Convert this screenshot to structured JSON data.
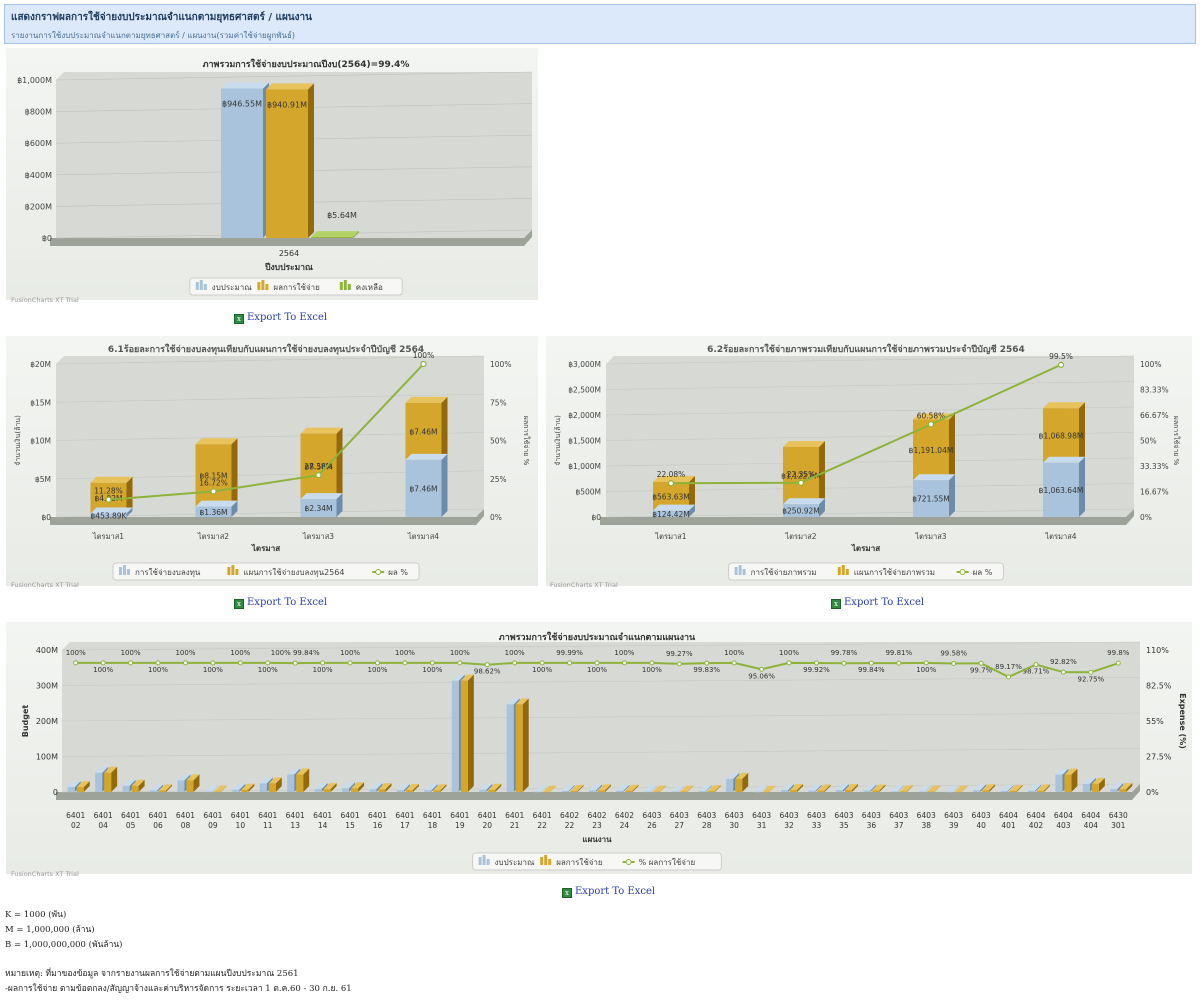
{
  "header": {
    "title": "แสดงกราฟผลการใช้จ่ายงบประมาณจำแนกตามยุทธศาสตร์ / แผนงาน",
    "subtitle": "รายงานการใช้งบประมาณจำแนกตามยุทธศาสตร์ / แผนงาน(รวมค่าใช้จ่ายผูกพันธ์)"
  },
  "trial_text": "FusionCharts XT Trial",
  "export_label": "Export To Excel",
  "colors": {
    "blue": "#a9c3dc",
    "gold": "#d4a72c",
    "green": "#8db33a"
  },
  "chart_data": [
    {
      "type": "bar",
      "title": "ภาพรวมการใช้จ่ายงบประมาณปีงบ(2564)=99.4%",
      "xlabel": "ปีงบประมาณ",
      "categories": [
        "2564"
      ],
      "y_ticks": [
        "฿0",
        "฿200M",
        "฿400M",
        "฿600M",
        "฿800M",
        "฿1,000M"
      ],
      "ylim": [
        0,
        1000
      ],
      "series": [
        {
          "name": "งบประมาณ",
          "values": [
            946.55
          ],
          "labels": [
            "฿946.55M"
          ]
        },
        {
          "name": "ผลการใช้จ่าย",
          "values": [
            940.91
          ],
          "labels": [
            "฿940.91M"
          ]
        },
        {
          "name": "คงเหลือ",
          "values": [
            5.64
          ],
          "labels": [
            "฿5.64M"
          ]
        }
      ]
    },
    {
      "type": "bar",
      "title": "6.1ร้อยละการใช้จ่ายงบลงทุนเทียบกับแผนการใช้จ่ายงบลงทุนประจำปีบัญชี 2564",
      "xlabel": "ไตรมาส",
      "ylabel": "จำนวนเงิน(ล้าน)",
      "y2label": "ผลการใช้จ่าย %",
      "categories": [
        "ไตรมาส1",
        "ไตรมาส2",
        "ไตรมาส3",
        "ไตรมาส4"
      ],
      "y_ticks": [
        "฿0",
        "฿5M",
        "฿10M",
        "฿15M",
        "฿20M"
      ],
      "y2_ticks": [
        "0%",
        "25%",
        "50%",
        "75%",
        "100%"
      ],
      "ylim": [
        0,
        20
      ],
      "series": [
        {
          "name": "การใช้จ่ายงบลงทุน",
          "values": [
            0.45,
            1.36,
            2.34,
            7.46
          ],
          "labels": [
            "฿453.89K",
            "฿1.36M",
            "฿2.34M",
            "฿7.46M"
          ]
        },
        {
          "name": "แผนการใช้จ่ายงบลงทุน2564",
          "values": [
            4.02,
            8.15,
            8.56,
            7.46
          ],
          "labels": [
            "฿4.02M",
            "฿8.15M",
            "฿8.56M",
            "฿7.46M"
          ]
        },
        {
          "name": "ผล %",
          "values": [
            11.28,
            16.72,
            27.38,
            100
          ],
          "labels": [
            "11.28%",
            "16.72%",
            "27.38%",
            "100%"
          ]
        }
      ]
    },
    {
      "type": "bar",
      "title": "6.2ร้อยละการใช้จ่ายภาพรวมเทียบกับแผนการใช้จ่ายภาพรวมประจำปีบัญชี 2564",
      "xlabel": "ไตรมาส",
      "ylabel": "จำนวนเงิน(ล้าน)",
      "y2label": "ผลการใช้จ่าย %",
      "categories": [
        "ไตรมาส1",
        "ไตรมาส2",
        "ไตรมาส3",
        "ไตรมาส4"
      ],
      "y_ticks": [
        "฿0",
        "฿500M",
        "฿1,000M",
        "฿1,500M",
        "฿2,000M",
        "฿2,500M",
        "฿3,000M"
      ],
      "y2_ticks": [
        "0%",
        "16.67%",
        "33.33%",
        "50%",
        "66.67%",
        "83.33%",
        "100%"
      ],
      "ylim": [
        0,
        3000
      ],
      "series": [
        {
          "name": "การใช้จ่ายภาพรวม",
          "values": [
            124.42,
            250.92,
            721.55,
            1063.64
          ],
          "labels": [
            "฿124.42M",
            "฿250.92M",
            "฿721.55M",
            "฿1,063.64M"
          ]
        },
        {
          "name": "แผนการใช้จ่ายภาพรวม",
          "values": [
            563.63,
            1122.6,
            1191.04,
            1068.98
          ],
          "labels": [
            "฿563.63M",
            "฿1,122.6M",
            "฿1,191.04M",
            "฿1,068.98M"
          ]
        },
        {
          "name": "ผล %",
          "values": [
            22.08,
            22.35,
            60.58,
            99.5
          ],
          "labels": [
            "22.08%",
            "22.35%",
            "60.58%",
            "99.5%"
          ]
        }
      ]
    },
    {
      "type": "bar",
      "title": "ภาพรวมการใช้จ่ายงบประมาณจำแนกตามแผนงาน",
      "xlabel": "แผนงาน",
      "ylabel": "Budget",
      "y2label": "Expense (%)",
      "y_ticks": [
        "0",
        "100M",
        "200M",
        "300M",
        "400M"
      ],
      "y2_ticks": [
        "0%",
        "27.5%",
        "55%",
        "82.5%",
        "110%"
      ],
      "ylim": [
        0,
        400
      ],
      "categories": [
        "6401 02",
        "6401 04",
        "6401 05",
        "6401 06",
        "6401 08",
        "6401 09",
        "6401 10",
        "6401 11",
        "6401 13",
        "6401 14",
        "6401 15",
        "6401 16",
        "6401 17",
        "6401 18",
        "6401 19",
        "6401 20",
        "6401 21",
        "6401 22",
        "6402 22",
        "6402 23",
        "6402 24",
        "6403 26",
        "6403 27",
        "6403 28",
        "6403 30",
        "6403 31",
        "6403 32",
        "6403 33",
        "6403 35",
        "6403 36",
        "6403 37",
        "6403 38",
        "6403 39",
        "6403 40",
        "6404 401",
        "6404 402",
        "6404 403",
        "6404 404",
        "6430 301"
      ],
      "series": [
        {
          "name": "งบประมาณ",
          "values": [
            13.87,
            54.34,
            17.43,
            4.5,
            32.8,
            1.0,
            6.6,
            24.2,
            49.4,
            8.3,
            10.7,
            8.0,
            5.5,
            5.0,
            313.6,
            6.2,
            247.0,
            0.6,
            3.0,
            4.5,
            3.5,
            1.0,
            1.2,
            2.5,
            36.9,
            0.5,
            5.6,
            3.9,
            5.8,
            4.3,
            1.6,
            1.1,
            0.6,
            4.9,
            2.9,
            3.7,
            48.9,
            22.9,
            8.4
          ]
        },
        {
          "name": "ผลการใช้จ่าย",
          "values": [
            13.87,
            54.34,
            17.43,
            4.5,
            32.8,
            1.0,
            6.6,
            24.2,
            49.4,
            8.3,
            10.7,
            8.0,
            5.5,
            5.0,
            313.6,
            6.2,
            247.0,
            0.6,
            3.0,
            4.5,
            3.5,
            1.0,
            1.2,
            2.5,
            36.9,
            0.5,
            5.6,
            3.9,
            5.8,
            4.3,
            1.6,
            1.1,
            0.6,
            4.9,
            2.9,
            3.7,
            48.9,
            22.9,
            8.4
          ]
        },
        {
          "name": "% ผลการใช้จ่าย",
          "values": [
            100,
            100,
            100,
            100,
            100,
            100,
            100,
            100,
            99.84,
            100,
            100,
            100,
            100,
            100,
            100,
            98.62,
            100,
            100,
            99.99,
            100,
            100,
            100,
            99.27,
            99.83,
            100,
            95.06,
            100,
            99.92,
            99.78,
            99.84,
            99.81,
            100,
            99.58,
            99.7,
            89.17,
            98.71,
            92.82,
            92.75,
            99.8
          ]
        }
      ],
      "pct_labels": [
        "100%",
        "100%",
        "100%",
        "100%",
        "100%",
        "100%",
        "100%",
        "100%",
        "100% 99.84%",
        "100%",
        "100%",
        "100%",
        "100%",
        "100%",
        "100%",
        "98.62%",
        "100%",
        "100%",
        "99.99%",
        "100%",
        "100%",
        "100%",
        "99.27%",
        "99.83%",
        "100%",
        "95.06%",
        "100%",
        "99.92%",
        "99.78%",
        "99.84%",
        "99.81%",
        "100%",
        "99.58%",
        "99.7%",
        "89.17%",
        "98.71%",
        "92.82%",
        "92.75%",
        "99.8%"
      ]
    }
  ],
  "notes": [
    "K = 1000 (พัน)",
    "M = 1,000,000 (ล้าน)",
    "B = 1,000,000,000 (พันล้าน)",
    "หมายเหตุ: ที่มาของข้อมูล จากรายงานผลการใช้จ่ายตามแผนปีงบประมาณ 2561",
    "-ผลการใช้จ่าย ตามข้อตกลง/สัญญาจ้างและค่าบริหารจัดการ ระยะเวลา 1 ต.ค.60 - 30 ก.ย. 61"
  ]
}
